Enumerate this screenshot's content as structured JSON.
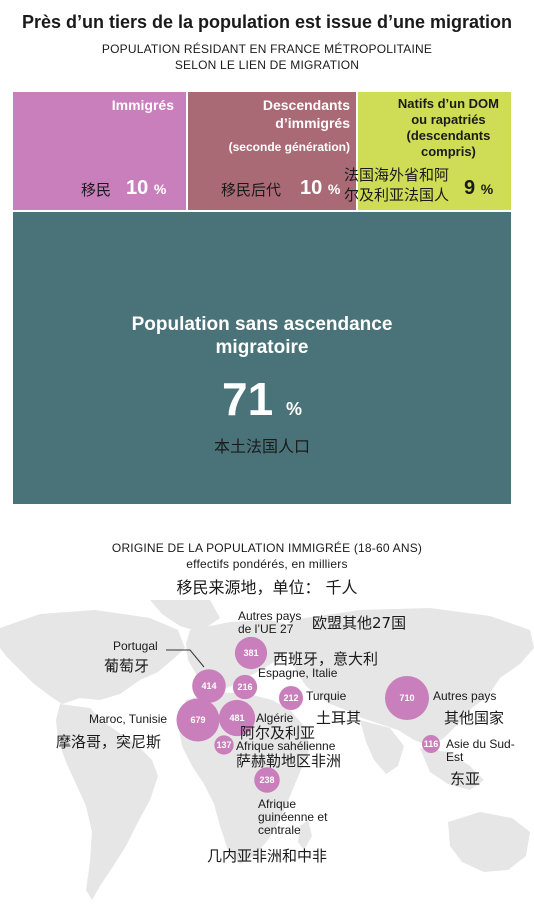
{
  "header": {
    "title": "Près d’un tiers de la population est issue d’une migration",
    "subtitle_line1": "POPULATION RÉSIDANT EN FRANCE MÉTROPOLITAINE",
    "subtitle_line2": "SELON LE LIEN DE MIGRATION"
  },
  "treemap": {
    "immigres": {
      "label": "Immigrés",
      "pct": "10",
      "unit": "%",
      "cn": "移民",
      "color": "#c97fbb"
    },
    "descendants": {
      "label_line1": "Descendants",
      "label_line2": "d’immigrés",
      "label_line3": "(seconde génération)",
      "pct": "10",
      "unit": "%",
      "cn": "移民后代",
      "color": "#a96a76"
    },
    "natifs": {
      "label_line1": "Natifs d’un DOM",
      "label_line2": "ou rapatriés",
      "label_line3": "(descendants",
      "label_line4": "compris)",
      "pct": "9",
      "unit": "%",
      "cn_line1": "法国海外省和阿",
      "cn_line2": "尔及利亚法国人",
      "color": "#cfdc55"
    },
    "sans": {
      "label_line1": "Population sans ascendance",
      "label_line2": "migratoire",
      "pct": "71",
      "unit": "%",
      "cn": "本土法国人口",
      "color": "#4a7379"
    }
  },
  "origin": {
    "title": "ORIGINE DE LA POPULATION IMMIGRÉE (18-60 ANS)",
    "subtitle": "effectifs pondérés, en milliers",
    "cn": "移民来源地，单位： 千人"
  },
  "chart_data": {
    "type": "bubble-map",
    "title": "ORIGINE DE LA POPULATION IMMIGRÉE (18-60 ANS)",
    "unit": "effectifs pondérés, en milliers",
    "bubble_color": "#c97fbb",
    "regions": [
      {
        "label": "Portugal",
        "cn": "葡萄牙",
        "value": 414
      },
      {
        "label": "Autres pays de l’UE 27",
        "cn": "欧盟其他27国",
        "value": 381
      },
      {
        "label": "Espagne, Italie",
        "cn": "西班牙，意大利",
        "value": 216
      },
      {
        "label": "Turquie",
        "cn": "土耳其",
        "value": 212
      },
      {
        "label": "Maroc, Tunisie",
        "cn": "摩洛哥，突尼斯",
        "value": 679
      },
      {
        "label": "Algérie",
        "cn": "阿尔及利亚",
        "value": 481
      },
      {
        "label": "Afrique sahélienne",
        "cn": "萨赫勒地区非洲",
        "value": 137
      },
      {
        "label": "Afrique guinéenne et centrale",
        "cn": "几内亚非洲和中非",
        "value": 238
      },
      {
        "label": "Autres pays",
        "cn": "其他国家",
        "value": 710
      },
      {
        "label": "Asie du Sud-Est",
        "cn": "东亚",
        "value": 116
      }
    ]
  }
}
